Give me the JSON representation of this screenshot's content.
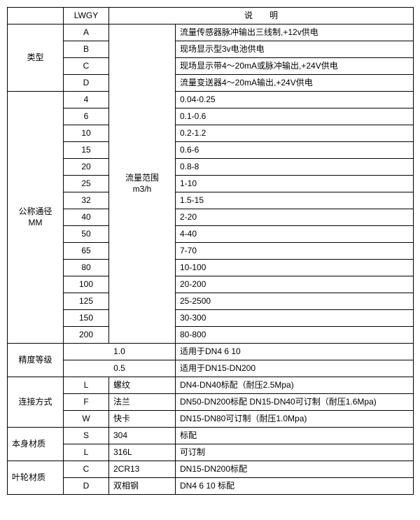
{
  "header": {
    "lwgy": "LWGY",
    "desc": "说　　明"
  },
  "type": {
    "label": "类型",
    "rows": [
      {
        "code": "A",
        "desc": "流量传感器脉冲输出三线制,+12v供电"
      },
      {
        "code": "B",
        "desc": "现场显示型3v电池供电"
      },
      {
        "code": "C",
        "desc": "现场显示带4～20mA或脉冲输出,+24V供电"
      },
      {
        "code": "D",
        "desc": "流量变送器4～20mA输出,+24V供电"
      }
    ]
  },
  "dn": {
    "label1": "公称通径",
    "label2": "MM",
    "range1": "流量范围",
    "range2": "m3/h",
    "rows": [
      {
        "code": "4",
        "desc": "0.04-0.25"
      },
      {
        "code": "6",
        "desc": "0.1-0.6"
      },
      {
        "code": "10",
        "desc": "0.2-1.2"
      },
      {
        "code": "15",
        "desc": "0.6-6"
      },
      {
        "code": "20",
        "desc": "0.8-8"
      },
      {
        "code": "25",
        "desc": "1-10"
      },
      {
        "code": "32",
        "desc": "1.5-15"
      },
      {
        "code": "40",
        "desc": "2-20"
      },
      {
        "code": "50",
        "desc": "4-40"
      },
      {
        "code": "65",
        "desc": "7-70"
      },
      {
        "code": "80",
        "desc": "10-100"
      },
      {
        "code": "100",
        "desc": "20-200"
      },
      {
        "code": "125",
        "desc": "25-2500"
      },
      {
        "code": "150",
        "desc": "30-300"
      },
      {
        "code": "200",
        "desc": "80-800"
      }
    ]
  },
  "accuracy": {
    "label": "精度等级",
    "rows": [
      {
        "val": "1.0",
        "desc": "适用于DN4  6  10"
      },
      {
        "val": "0.5",
        "desc": "适用于DN15-DN200"
      }
    ]
  },
  "conn": {
    "label": "连接方式",
    "rows": [
      {
        "code": "L",
        "mid": "螺纹",
        "desc": "DN4-DN40标配（耐压2.5Mpa)"
      },
      {
        "code": "F",
        "mid": "法兰",
        "desc": "DN50-DN200标配 DN15-DN40可订制（耐压1.6Mpa)"
      },
      {
        "code": "W",
        "mid": "快卡",
        "desc": "DN15-DN80可订制（耐压1.0Mpa)"
      }
    ]
  },
  "body_mat": {
    "label": "本身材质",
    "rows": [
      {
        "code": "S",
        "mid": "304",
        "desc": "标配"
      },
      {
        "code": "L",
        "mid": "316L",
        "desc": "可订制"
      }
    ]
  },
  "imp_mat": {
    "label": "叶轮材质",
    "rows": [
      {
        "code": "C",
        "mid": "2CR13",
        "desc": "DN15-DN200标配"
      },
      {
        "code": "D",
        "mid": "双相钢",
        "desc": "DN4 6 10 标配"
      }
    ]
  }
}
